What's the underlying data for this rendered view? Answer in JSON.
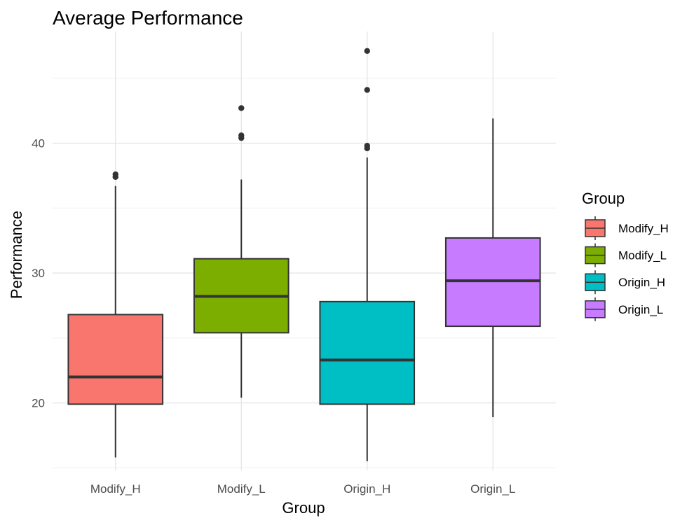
{
  "chart_data": {
    "type": "boxplot",
    "title": "Average Performance",
    "xlabel": "Group",
    "ylabel": "Performance",
    "ylim": [
      14.8,
      48.6
    ],
    "y_ticks": [
      20,
      30,
      40
    ],
    "grid": true,
    "categories": [
      "Modify_H",
      "Modify_L",
      "Origin_H",
      "Origin_L"
    ],
    "series": [
      {
        "name": "Modify_H",
        "color": "#F8766D",
        "whisker_low": 15.8,
        "q1": 19.9,
        "median": 22.0,
        "q3": 26.8,
        "whisker_high": 36.7,
        "outliers": [
          37.4,
          37.6
        ]
      },
      {
        "name": "Modify_L",
        "color": "#7CAE00",
        "whisker_low": 20.4,
        "q1": 25.4,
        "median": 28.2,
        "q3": 31.1,
        "whisker_high": 37.2,
        "outliers": [
          40.4,
          40.6,
          42.7
        ]
      },
      {
        "name": "Origin_H",
        "color": "#00BFC4",
        "whisker_low": 15.5,
        "q1": 19.9,
        "median": 23.3,
        "q3": 27.8,
        "whisker_high": 38.9,
        "outliers": [
          39.6,
          39.8,
          44.1,
          47.1
        ]
      },
      {
        "name": "Origin_L",
        "color": "#C77CFF",
        "whisker_low": 18.9,
        "q1": 25.9,
        "median": 29.4,
        "q3": 32.7,
        "whisker_high": 41.9,
        "outliers": []
      }
    ],
    "legend": {
      "title": "Group",
      "position": "right"
    }
  }
}
